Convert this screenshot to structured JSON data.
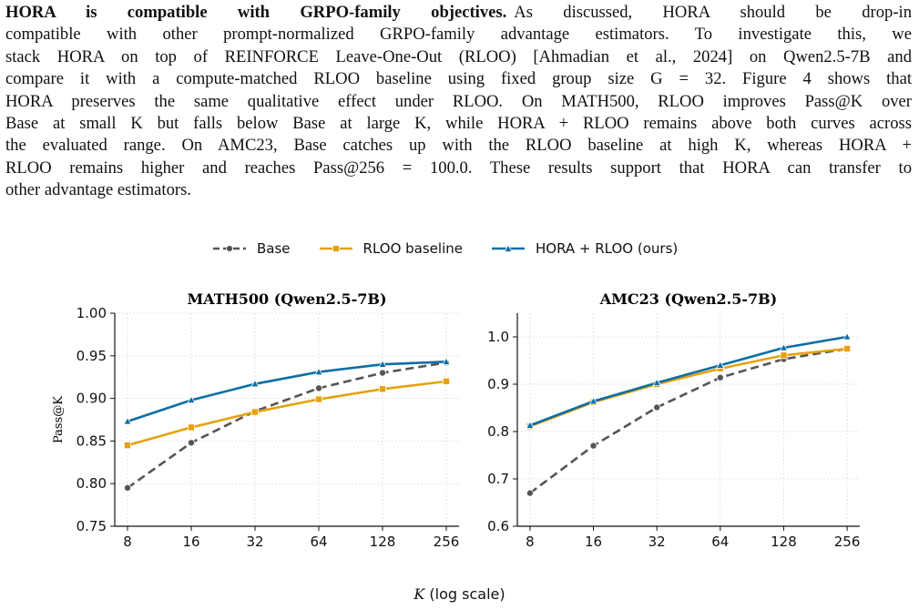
{
  "paragraph": {
    "lead": "HORA is compatible with GRPO-family objectives.",
    "lines": [
      "As discussed, HORA should be drop-in",
      "compatible with other prompt-normalized GRPO-family advantage estimators. To investigate this, we",
      "stack HORA on top of REINFORCE Leave-One-Out (RLOO) [Ahmadian et al., 2024] on Qwen2.5-7B and",
      "compare it with a compute-matched RLOO baseline using fixed group size G = 32. Figure 4 shows that",
      "HORA preserves the same qualitative effect under RLOO. On MATH500, RLOO improves Pass@K over",
      "Base at small K but falls below Base at large K, while HORA + RLOO remains above both curves across",
      "the evaluated range. On AMC23, Base catches up with the RLOO baseline at high K, whereas HORA +",
      "RLOO remains higher and reaches Pass@256 = 100.0. These results support that HORA can transfer to",
      "other advantage estimators."
    ]
  },
  "legend": {
    "base": "Base",
    "rloo": "RLOO baseline",
    "hora": "HORA + RLOO (ours)"
  },
  "colors": {
    "base": "#555555",
    "rloo": "#e6a10e",
    "hora": "#0b6fa4"
  },
  "shared_xlabel_main": "K",
  "shared_xlabel_suffix": " (log scale)",
  "chart_data": [
    {
      "type": "line",
      "title": "MATH500 (Qwen2.5-7B)",
      "ylabel": "Pass@K",
      "x_scale": "log2",
      "x": [
        8,
        16,
        32,
        64,
        128,
        256
      ],
      "x_ticks": [
        "8",
        "16",
        "32",
        "64",
        "128",
        "256"
      ],
      "ylim": [
        0.75,
        1.0
      ],
      "y_ticks": [
        "0.75",
        "0.80",
        "0.85",
        "0.90",
        "0.95",
        "1.00"
      ],
      "grid": true,
      "series": [
        {
          "name": "Base",
          "key": "base",
          "values": [
            0.795,
            0.848,
            0.885,
            0.912,
            0.93,
            0.942
          ]
        },
        {
          "name": "RLOO baseline",
          "key": "rloo",
          "values": [
            0.845,
            0.866,
            0.884,
            0.899,
            0.911,
            0.92
          ]
        },
        {
          "name": "HORA + RLOO (ours)",
          "key": "hora",
          "values": [
            0.873,
            0.898,
            0.917,
            0.931,
            0.94,
            0.943
          ]
        }
      ]
    },
    {
      "type": "line",
      "title": "AMC23 (Qwen2.5-7B)",
      "ylabel": "",
      "x_scale": "log2",
      "x": [
        8,
        16,
        32,
        64,
        128,
        256
      ],
      "x_ticks": [
        "8",
        "16",
        "32",
        "64",
        "128",
        "256"
      ],
      "ylim": [
        0.6,
        1.05
      ],
      "y_ticks": [
        "0.6",
        "0.7",
        "0.8",
        "0.9",
        "1.0"
      ],
      "grid": true,
      "series": [
        {
          "name": "Base",
          "key": "base",
          "values": [
            0.67,
            0.77,
            0.851,
            0.914,
            0.953,
            0.975
          ]
        },
        {
          "name": "RLOO baseline",
          "key": "rloo",
          "values": [
            0.811,
            0.862,
            0.9,
            0.933,
            0.961,
            0.975
          ]
        },
        {
          "name": "HORA + RLOO (ours)",
          "key": "hora",
          "values": [
            0.813,
            0.864,
            0.903,
            0.94,
            0.977,
            1.0
          ]
        }
      ]
    }
  ]
}
